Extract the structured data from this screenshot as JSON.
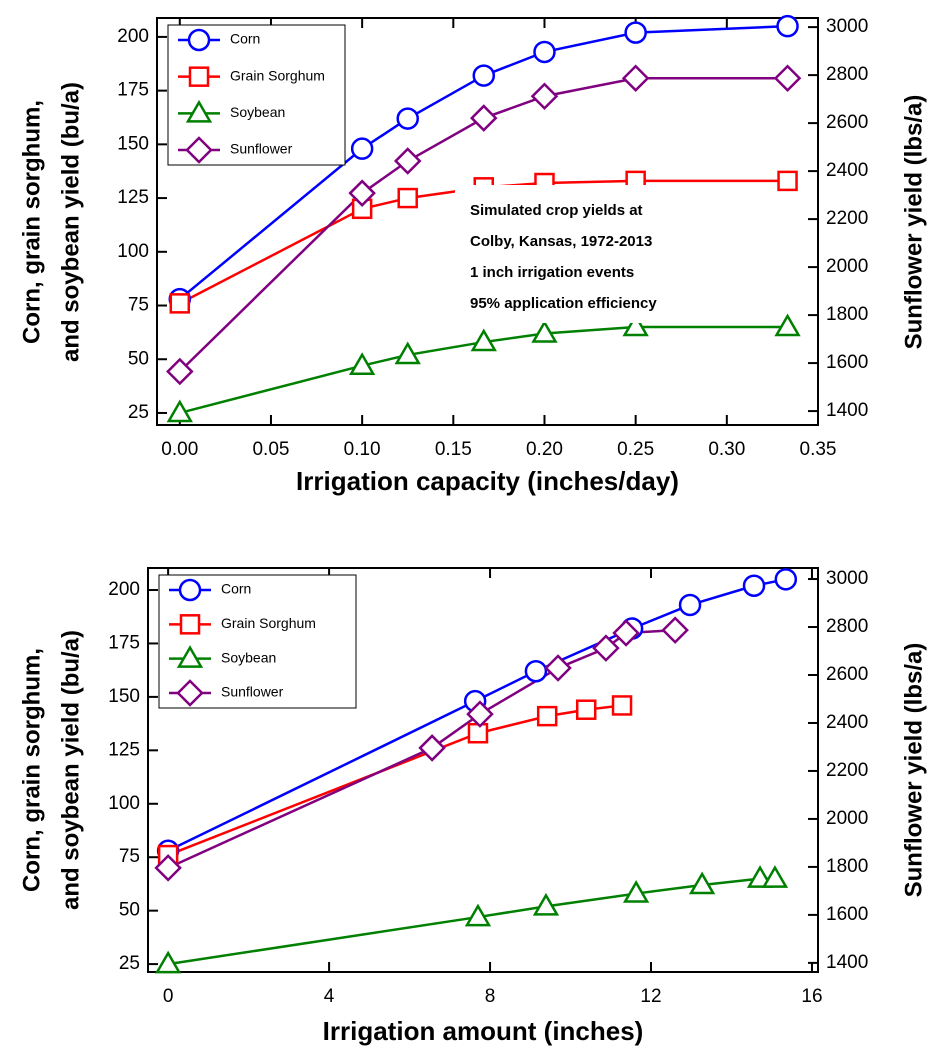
{
  "chart_data": [
    {
      "type": "line",
      "xlabel": "Irrigation capacity (inches/day)",
      "ylabel": [
        "Corn, grain sorghum,",
        "and soybean yield (bu/a)"
      ],
      "y2label": "Sunflower yield (lbs/a)",
      "xlim": [
        -0.0125,
        0.35
      ],
      "ylim": [
        19.4,
        208.8
      ],
      "y2lim": [
        1342,
        3038
      ],
      "xticks": [
        {
          "value": 0,
          "label": "0.00"
        },
        {
          "value": 0.05,
          "label": "0.05"
        },
        {
          "value": 0.1,
          "label": "0.10"
        },
        {
          "value": 0.15,
          "label": "0.15"
        },
        {
          "value": 0.2,
          "label": "0.20"
        },
        {
          "value": 0.25,
          "label": "0.25"
        },
        {
          "value": 0.3,
          "label": "0.30"
        },
        {
          "value": 0.35,
          "label": "0.35"
        }
      ],
      "yticks": [
        25,
        50,
        75,
        100,
        125,
        150,
        175,
        200
      ],
      "y2ticks": [
        1400,
        1600,
        1800,
        2000,
        2200,
        2400,
        2600,
        2800,
        3000
      ],
      "legend": "upper left",
      "annotation": [
        "Simulated crop yields at",
        "Colby, Kansas, 1972-2013",
        "1 inch irrigation events",
        "95% application efficiency"
      ],
      "series": [
        {
          "name": "Corn",
          "color": "#0000ff",
          "marker": "circle",
          "x": [
            0,
            0.1,
            0.125,
            0.1667,
            0.2,
            0.25,
            0.3333
          ],
          "values": [
            78,
            148,
            162,
            182,
            193,
            202,
            205
          ]
        },
        {
          "name": "Grain Sorghum",
          "color": "#ff0000",
          "marker": "square",
          "x": [
            0,
            0.1,
            0.125,
            0.1667,
            0.2,
            0.25,
            0.3333
          ],
          "values": [
            76,
            120,
            125,
            130,
            132,
            133,
            133
          ]
        },
        {
          "name": "Soybean",
          "color": "#008000",
          "marker": "triangle",
          "x": [
            0,
            0.1,
            0.125,
            0.1667,
            0.2,
            0.25,
            0.3333
          ],
          "values": [
            25,
            47,
            52,
            58,
            62,
            65,
            65
          ]
        },
        {
          "name": "Sunflower",
          "color": "#800080",
          "marker": "diamond",
          "axis": "y2",
          "x": [
            0,
            0.1,
            0.125,
            0.1667,
            0.2,
            0.25,
            0.3333
          ],
          "values": [
            1565,
            2308,
            2442,
            2621,
            2712,
            2787,
            2787
          ]
        }
      ]
    },
    {
      "type": "line",
      "xlabel": "Irrigation amount (inches)",
      "ylabel": [
        "Corn, grain sorghum,",
        "and soybean yield (bu/a)"
      ],
      "y2label": "Sunflower yield (lbs/a)",
      "xlim": [
        -0.5,
        16.15
      ],
      "ylim": [
        21.3,
        210.3
      ],
      "y2lim": [
        1362,
        3046
      ],
      "xticks": [
        0,
        4,
        8,
        12,
        16
      ],
      "yticks": [
        25,
        50,
        75,
        100,
        125,
        150,
        175,
        200
      ],
      "y2ticks": [
        1400,
        1600,
        1800,
        2000,
        2200,
        2400,
        2600,
        2800,
        3000
      ],
      "legend": "upper left",
      "series": [
        {
          "name": "Corn",
          "color": "#0000ff",
          "marker": "circle",
          "x": [
            0,
            7.63,
            9.14,
            11.53,
            12.97,
            14.56,
            15.35
          ],
          "values": [
            78,
            148,
            162,
            182,
            193,
            202,
            205
          ]
        },
        {
          "name": "Grain Sorghum",
          "color": "#ff0000",
          "marker": "square",
          "x": [
            0,
            7.7,
            9.42,
            10.39,
            11.28
          ],
          "values": [
            76,
            133,
            141,
            144,
            146
          ]
        },
        {
          "name": "Soybean",
          "color": "#008000",
          "marker": "triangle",
          "x": [
            0,
            7.7,
            9.39,
            11.63,
            13.27,
            14.71,
            15.08
          ],
          "values": [
            25,
            47,
            52,
            58,
            62,
            65,
            65
          ]
        },
        {
          "name": "Sunflower",
          "color": "#800080",
          "marker": "diamond",
          "axis": "y2",
          "x": [
            0,
            6.56,
            7.75,
            9.69,
            10.88,
            11.38,
            12.6
          ],
          "values": [
            1796,
            2296,
            2437,
            2629,
            2712,
            2775,
            2787
          ]
        }
      ]
    }
  ]
}
